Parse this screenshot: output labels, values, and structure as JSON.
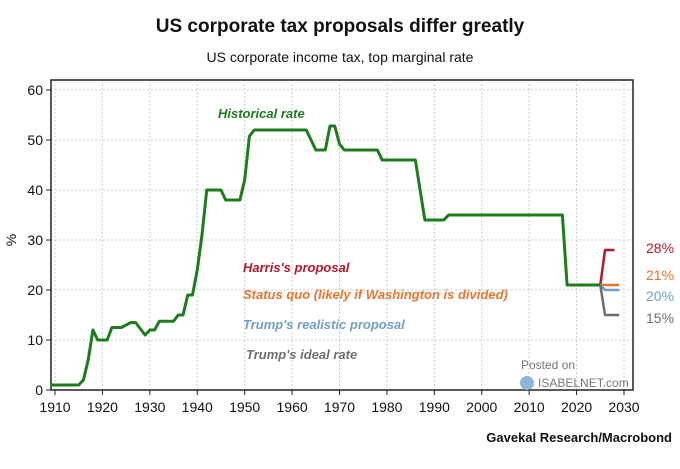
{
  "chart_data": {
    "type": "line",
    "title": "US corporate tax proposals differ greatly",
    "subtitle": "US corporate income tax, top marginal rate",
    "xlabel": "",
    "ylabel": "%",
    "xlim": [
      1909,
      2031
    ],
    "ylim": [
      0,
      60
    ],
    "x_ticks": [
      1910,
      1920,
      1930,
      1940,
      1950,
      1960,
      1970,
      1980,
      1990,
      2000,
      2010,
      2020,
      2030
    ],
    "y_ticks": [
      0,
      10,
      20,
      30,
      40,
      50,
      60
    ],
    "grid": true,
    "series": [
      {
        "name": "Historical rate",
        "color": "#1e7b1e",
        "x": [
          1909,
          1915,
          1916,
          1917,
          1918,
          1919,
          1921,
          1922,
          1924,
          1926,
          1927,
          1929,
          1930,
          1931,
          1932,
          1935,
          1936,
          1937,
          1938,
          1939,
          1940,
          1941,
          1942,
          1945,
          1946,
          1949,
          1950,
          1951,
          1952,
          1963,
          1964,
          1965,
          1967,
          1968,
          1969,
          1970,
          1971,
          1978,
          1979,
          1986,
          1987,
          1988,
          1992,
          1993,
          2017,
          2018,
          2025
        ],
        "y": [
          1,
          1,
          2,
          6,
          12,
          10,
          10,
          12.5,
          12.5,
          13.5,
          13.5,
          11,
          12,
          12,
          13.75,
          13.75,
          15,
          15,
          19,
          19,
          24,
          31,
          40,
          40,
          38,
          38,
          42,
          50.75,
          52,
          52,
          50,
          48,
          48,
          52.8,
          52.8,
          49.2,
          48,
          48,
          46,
          46,
          40,
          34,
          34,
          35,
          35,
          21,
          21
        ]
      },
      {
        "name": "Harris's proposal",
        "color": "#b5162b",
        "x": [
          2025,
          2026,
          2028
        ],
        "y": [
          21,
          28,
          28
        ],
        "end_label": "28%"
      },
      {
        "name": "Status quo (likely if Washington is divided)",
        "color": "#e8742a",
        "x": [
          2025,
          2029
        ],
        "y": [
          21,
          21
        ],
        "end_label": "21%"
      },
      {
        "name": "Trump's realistic proposal",
        "color": "#6f9ec2",
        "x": [
          2025,
          2026,
          2029
        ],
        "y": [
          21,
          20,
          20
        ],
        "end_label": "20%"
      },
      {
        "name": "Trump's ideal rate",
        "color": "#6e6e6e",
        "x": [
          2025,
          2026,
          2029
        ],
        "y": [
          21,
          15,
          15
        ],
        "end_label": "15%"
      }
    ],
    "source": "Gavekal Research/Macrobond",
    "watermark": [
      "Posted on",
      "ISABELNET.com"
    ]
  }
}
